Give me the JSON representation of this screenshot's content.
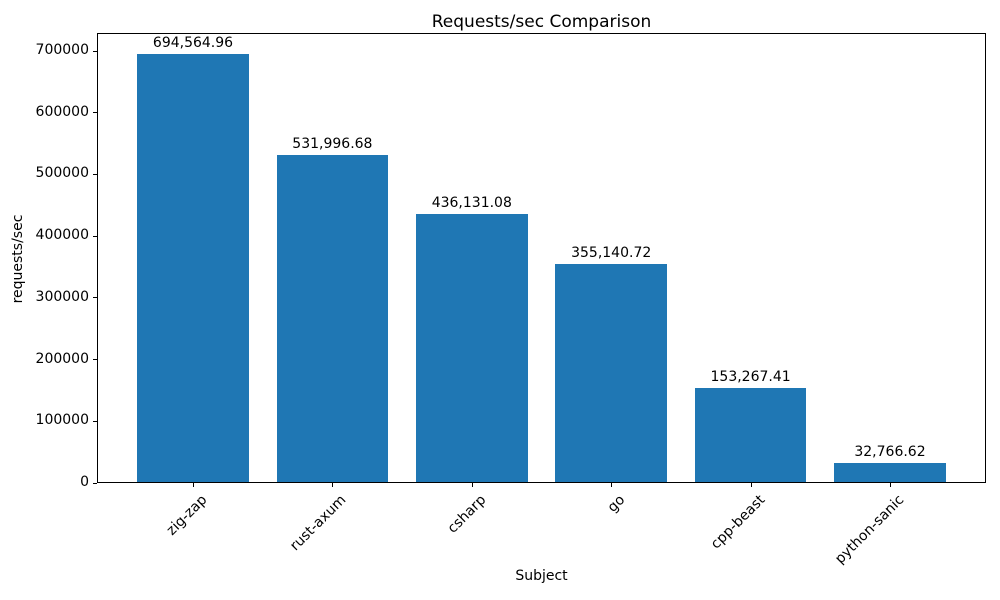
{
  "chart_data": {
    "type": "bar",
    "title": "Requests/sec Comparison",
    "xlabel": "Subject",
    "ylabel": "requests/sec",
    "categories": [
      "zig-zap",
      "rust-axum",
      "csharp",
      "go",
      "cpp-beast",
      "python-sanic"
    ],
    "values": [
      694564.96,
      531996.68,
      436131.08,
      355140.72,
      153267.41,
      32766.62
    ],
    "value_labels": [
      "694,564.96",
      "531,996.68",
      "436,131.08",
      "355,140.72",
      "153,267.41",
      "32,766.62"
    ],
    "yticks": [
      0,
      100000,
      200000,
      300000,
      400000,
      500000,
      600000,
      700000
    ],
    "ytick_labels": [
      "0",
      "100000",
      "200000",
      "300000",
      "400000",
      "500000",
      "600000",
      "700000"
    ],
    "ylim": [
      0,
      729293
    ],
    "grid": false,
    "legend": "none",
    "bar_color": "#1f77b4",
    "text_color": "#000000",
    "xtick_rotation_deg": 45
  }
}
